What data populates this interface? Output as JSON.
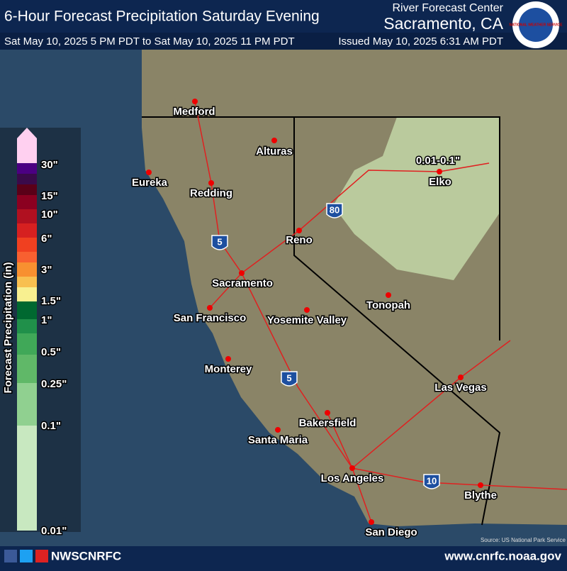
{
  "header": {
    "title": "6-Hour Forecast Precipitation Saturday Evening",
    "office_line": "River Forecast Center",
    "office": "Sacramento, CA",
    "period": "Sat May 10, 2025 5 PM PDT to Sat May 10, 2025 11 PM PDT",
    "issued": "Issued May 10, 2025 6:31 AM PDT",
    "logo": "NATIONAL WEATHER SERVICE"
  },
  "legend": {
    "title": "Forecast Precipitation (in)",
    "labels": [
      "30\"",
      "15\"",
      "10\"",
      "6\"",
      "3\"",
      "1.5\"",
      "1\"",
      "0.5\"",
      "0.25\"",
      "0.1\"",
      "0.01\""
    ]
  },
  "map": {
    "cities": [
      "Medford",
      "Alturas",
      "Eureka",
      "Redding",
      "Elko",
      "Reno",
      "Sacramento",
      "San Francisco",
      "Yosemite Valley",
      "Tonopah",
      "Monterey",
      "Las Vegas",
      "Bakersfield",
      "Santa Maria",
      "Los Angeles",
      "Blythe",
      "San Diego"
    ],
    "annotation": "0.01-0.1\"",
    "shields": [
      "5",
      "80",
      "5",
      "10"
    ],
    "source": "Source: US National Park Service"
  },
  "footer": {
    "handle": "NWSCNRFC",
    "url": "www.cnrfc.noaa.gov"
  }
}
